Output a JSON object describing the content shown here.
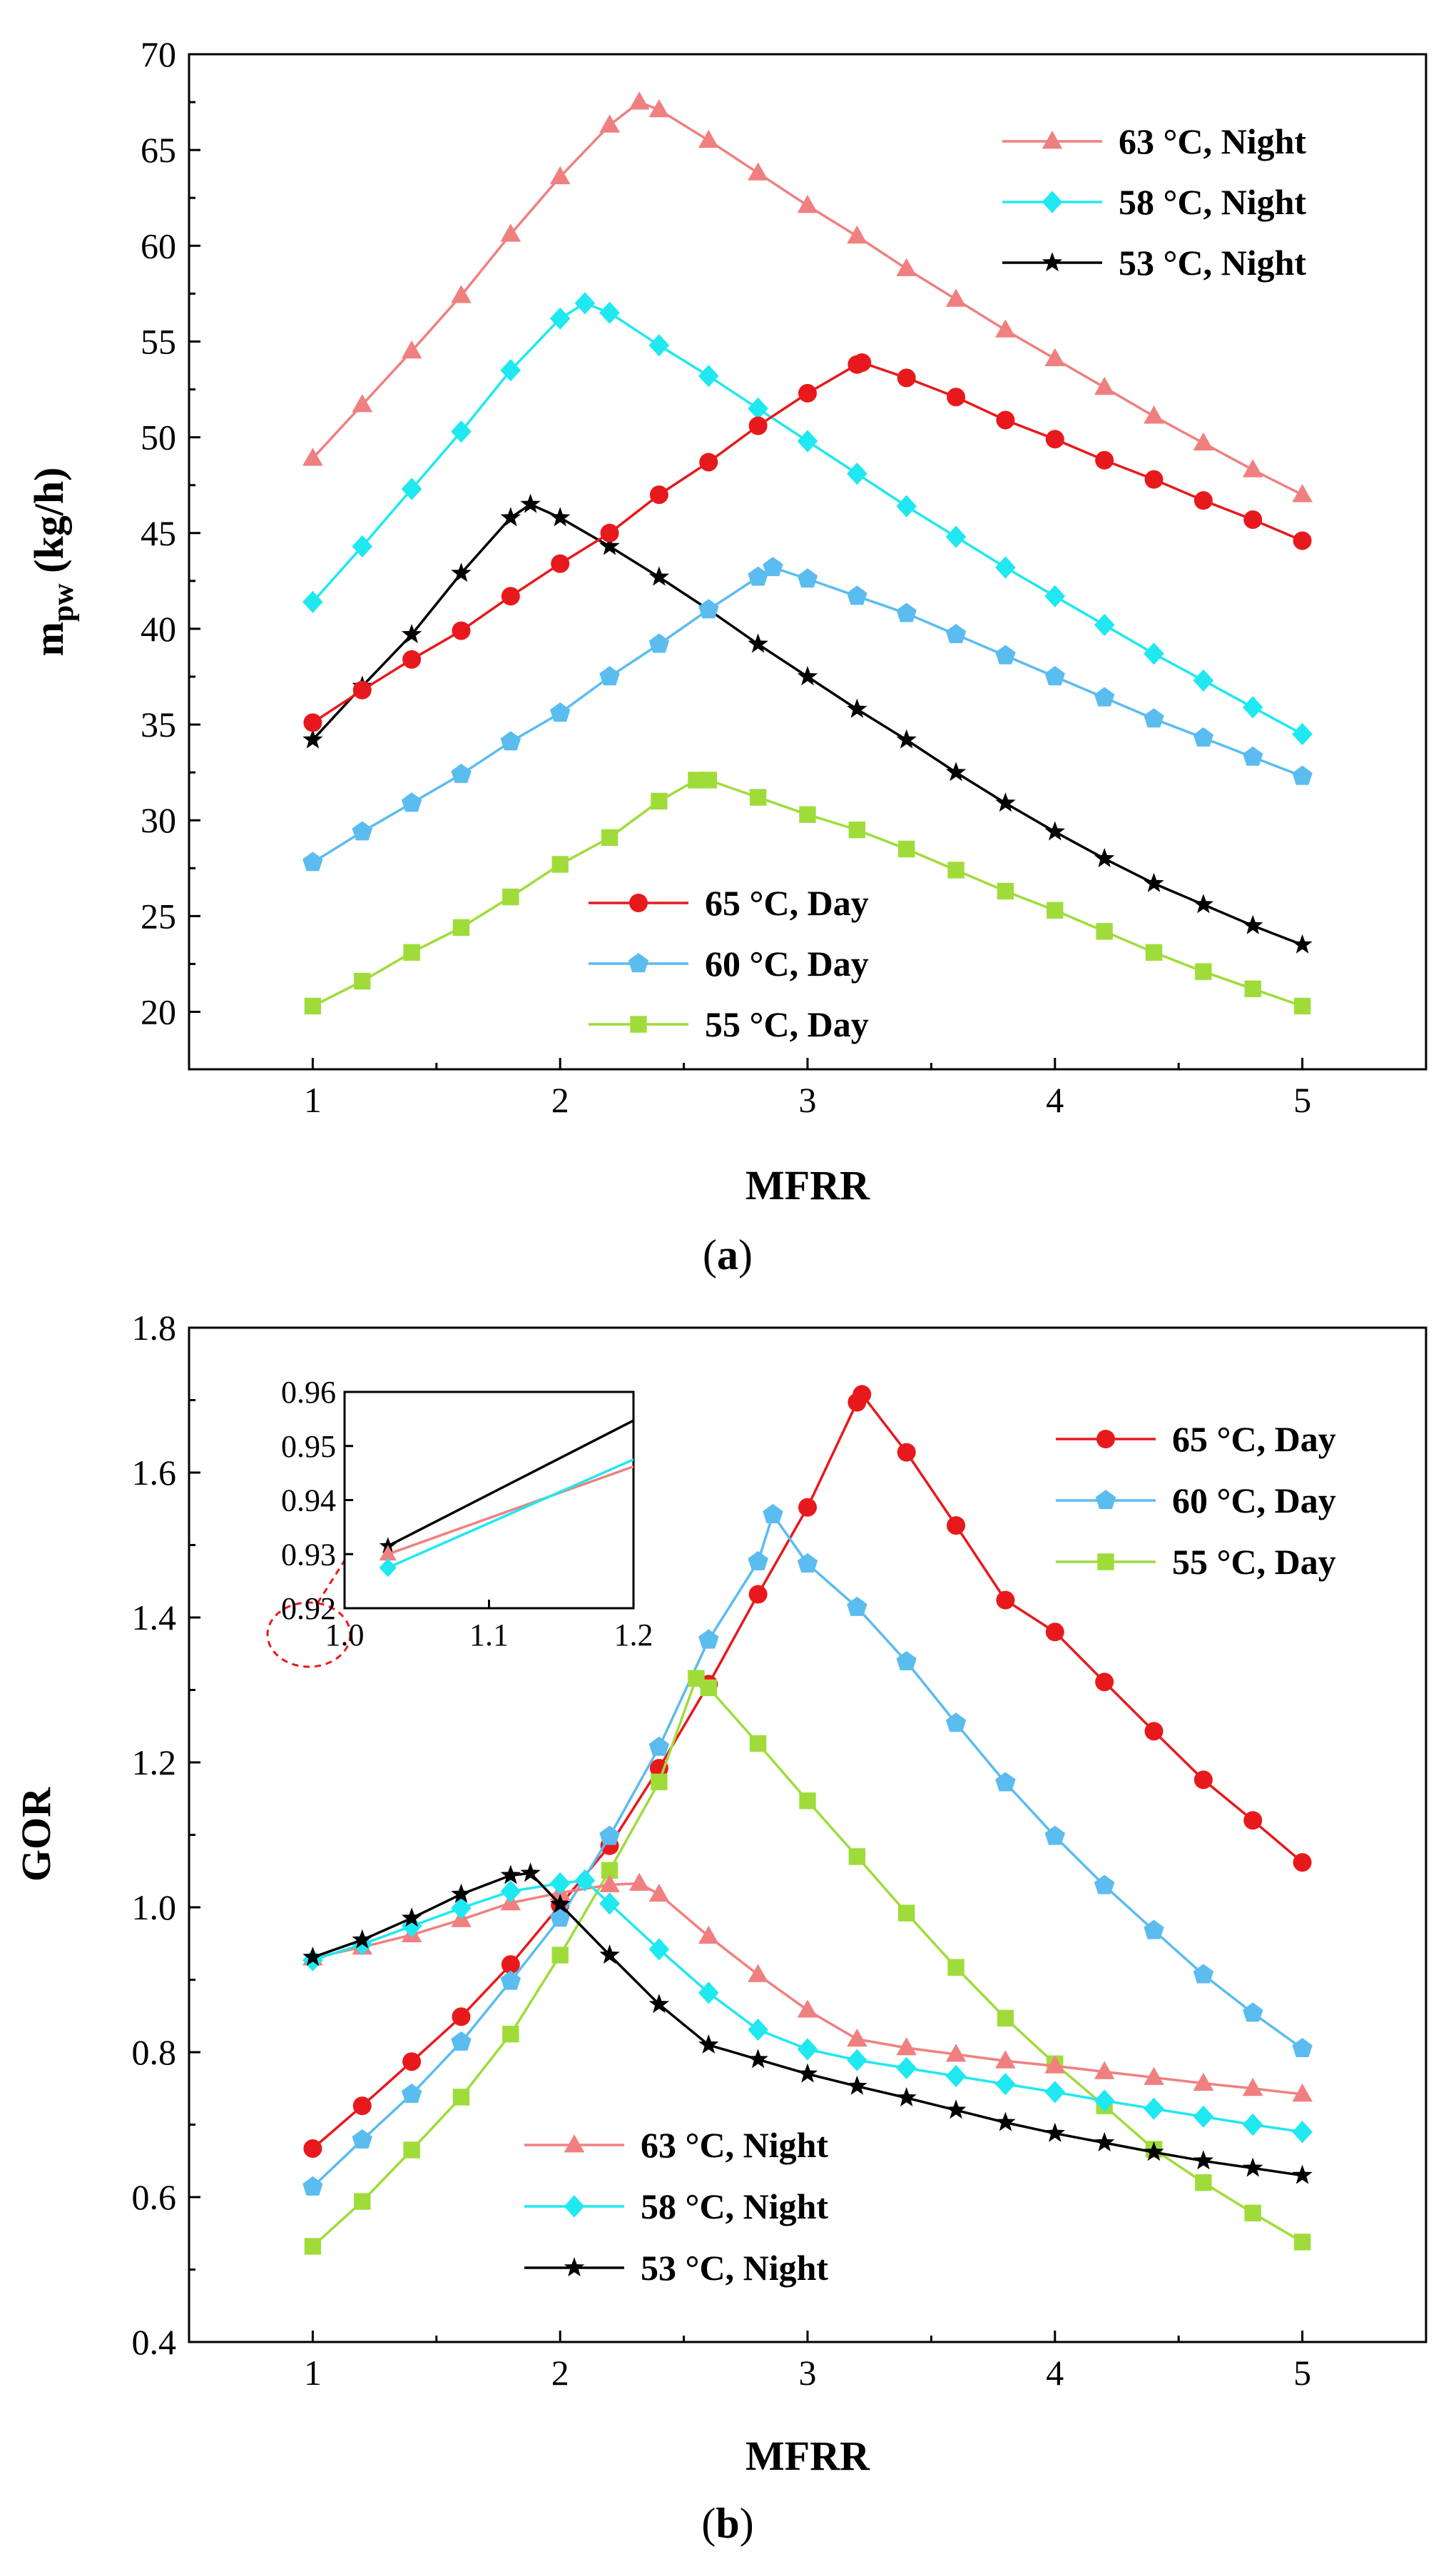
{
  "colors": {
    "red": "#e8191c",
    "blue": "#5bbcf0",
    "green": "#9fdc3a",
    "salmon": "#f08080",
    "cyan": "#1fe8f0",
    "black": "#000000"
  },
  "chart_data": [
    {
      "type": "line",
      "panel": "a",
      "caption": {
        "open": "(",
        "letter": "a",
        "close": ")"
      },
      "xlabel": "MFRR",
      "ylabel_main": "m",
      "ylabel_sub": "pw",
      "ylabel_unit": " (kg/h)",
      "xlim": [
        0.5,
        5.5
      ],
      "ylim": [
        17,
        70
      ],
      "xticks": [
        1,
        2,
        3,
        4,
        5
      ],
      "xtick_labels": [
        "1",
        "2",
        "3",
        "4",
        "5"
      ],
      "yticks": [
        20,
        25,
        30,
        35,
        40,
        45,
        50,
        55,
        60,
        65,
        70
      ],
      "ytick_labels": [
        "20",
        "25",
        "30",
        "35",
        "40",
        "45",
        "50",
        "55",
        "60",
        "65",
        "70"
      ],
      "legends": [
        {
          "position": "top-right",
          "entries": [
            "63 °C, Night",
            "58 °C, Night",
            "53 °C, Night"
          ]
        },
        {
          "position": "bottom-center",
          "entries": [
            "65 °C, Day",
            "60 °C, Day",
            "55 °C, Day"
          ]
        }
      ],
      "series": [
        {
          "name": "63 °C, Night",
          "color": "#f08080",
          "marker": "triangle",
          "x": [
            1,
            1.2,
            1.4,
            1.6,
            1.8,
            2.0,
            2.2,
            2.32,
            2.4,
            2.6,
            2.8,
            3.0,
            3.2,
            3.4,
            3.6,
            3.8,
            4.0,
            4.2,
            4.4,
            4.6,
            4.8,
            5.0
          ],
          "y": [
            48.9,
            51.7,
            54.5,
            57.4,
            60.6,
            63.6,
            66.3,
            67.5,
            67.1,
            65.5,
            63.8,
            62.1,
            60.5,
            58.8,
            57.2,
            55.6,
            54.1,
            52.6,
            51.1,
            49.7,
            48.3,
            47.0
          ]
        },
        {
          "name": "58 °C, Night",
          "color": "#1fe8f0",
          "marker": "diamond",
          "x": [
            1,
            1.2,
            1.4,
            1.6,
            1.8,
            2.0,
            2.1,
            2.2,
            2.4,
            2.6,
            2.8,
            3.0,
            3.2,
            3.4,
            3.6,
            3.8,
            4.0,
            4.2,
            4.4,
            4.6,
            4.8,
            5.0
          ],
          "y": [
            41.4,
            44.3,
            47.3,
            50.3,
            53.5,
            56.2,
            57.0,
            56.5,
            54.8,
            53.2,
            51.5,
            49.8,
            48.1,
            46.4,
            44.8,
            43.2,
            41.7,
            40.2,
            38.7,
            37.3,
            35.9,
            34.5
          ]
        },
        {
          "name": "53 °C, Night",
          "color": "#000000",
          "marker": "star",
          "x": [
            1,
            1.2,
            1.4,
            1.6,
            1.8,
            1.88,
            2.0,
            2.2,
            2.4,
            2.6,
            2.8,
            3.0,
            3.2,
            3.4,
            3.6,
            3.8,
            4.0,
            4.2,
            4.4,
            4.6,
            4.8,
            5.0
          ],
          "y": [
            34.2,
            37.0,
            39.7,
            42.9,
            45.8,
            46.5,
            45.8,
            44.3,
            42.7,
            41.0,
            39.2,
            37.5,
            35.8,
            34.2,
            32.5,
            30.9,
            29.4,
            28.0,
            26.7,
            25.6,
            24.5,
            23.5
          ]
        },
        {
          "name": "65 °C, Day",
          "color": "#e8191c",
          "marker": "circle",
          "x": [
            1,
            1.2,
            1.4,
            1.6,
            1.8,
            2.0,
            2.2,
            2.4,
            2.6,
            2.8,
            3.0,
            3.2,
            3.22,
            3.4,
            3.6,
            3.8,
            4.0,
            4.2,
            4.4,
            4.6,
            4.8,
            5.0
          ],
          "y": [
            35.1,
            36.8,
            38.4,
            39.9,
            41.7,
            43.4,
            45.0,
            47.0,
            48.7,
            50.6,
            52.3,
            53.8,
            53.9,
            53.1,
            52.1,
            50.9,
            49.9,
            48.8,
            47.8,
            46.7,
            45.7,
            44.6
          ]
        },
        {
          "name": "60 °C, Day",
          "color": "#5bbcf0",
          "marker": "pentagon",
          "x": [
            1,
            1.2,
            1.4,
            1.6,
            1.8,
            2.0,
            2.2,
            2.4,
            2.6,
            2.8,
            2.86,
            3.0,
            3.2,
            3.4,
            3.6,
            3.8,
            4.0,
            4.2,
            4.4,
            4.6,
            4.8,
            5.0
          ],
          "y": [
            27.8,
            29.4,
            30.9,
            32.4,
            34.1,
            35.6,
            37.5,
            39.2,
            41.0,
            42.7,
            43.2,
            42.6,
            41.7,
            40.8,
            39.7,
            38.6,
            37.5,
            36.4,
            35.3,
            34.3,
            33.3,
            32.3
          ]
        },
        {
          "name": "55 °C, Day",
          "color": "#9fdc3a",
          "marker": "square",
          "x": [
            1,
            1.2,
            1.4,
            1.6,
            1.8,
            2.0,
            2.2,
            2.4,
            2.55,
            2.6,
            2.8,
            3.0,
            3.2,
            3.4,
            3.6,
            3.8,
            4.0,
            4.2,
            4.4,
            4.6,
            4.8,
            5.0
          ],
          "y": [
            20.3,
            21.6,
            23.1,
            24.4,
            26.0,
            27.7,
            29.1,
            31.0,
            32.1,
            32.1,
            31.2,
            30.3,
            29.5,
            28.5,
            27.4,
            26.3,
            25.3,
            24.2,
            23.1,
            22.1,
            21.2,
            20.3
          ]
        }
      ]
    },
    {
      "type": "line",
      "panel": "b",
      "caption": {
        "open": "(",
        "letter": "b",
        "close": ")"
      },
      "xlabel": "MFRR",
      "ylabel": "GOR",
      "xlim": [
        0.5,
        5.5
      ],
      "ylim": [
        0.4,
        1.8
      ],
      "xticks": [
        1,
        2,
        3,
        4,
        5
      ],
      "xtick_labels": [
        "1",
        "2",
        "3",
        "4",
        "5"
      ],
      "yticks": [
        0.4,
        0.6,
        0.8,
        1.0,
        1.2,
        1.4,
        1.6,
        1.8
      ],
      "ytick_labels": [
        "0.4",
        "0.6",
        "0.8",
        "1.0",
        "1.2",
        "1.4",
        "1.6",
        "1.8"
      ],
      "legends": [
        {
          "position": "top-right",
          "entries": [
            "65 °C, Day",
            "60 °C, Day",
            "55 °C, Day"
          ]
        },
        {
          "position": "bottom-center",
          "entries": [
            "63 °C, Night",
            "58 °C, Night",
            "53 °C, Night"
          ]
        }
      ],
      "series": [
        {
          "name": "65 °C, Day",
          "color": "#e8191c",
          "marker": "circle",
          "x": [
            1,
            1.2,
            1.4,
            1.6,
            1.8,
            2.0,
            2.2,
            2.4,
            2.6,
            2.8,
            3.0,
            3.2,
            3.22,
            3.4,
            3.6,
            3.8,
            4.0,
            4.2,
            4.4,
            4.6,
            4.8,
            5.0
          ],
          "y": [
            0.667,
            0.726,
            0.787,
            0.849,
            0.921,
            1.003,
            1.085,
            1.192,
            1.308,
            1.432,
            1.552,
            1.697,
            1.708,
            1.628,
            1.527,
            1.424,
            1.38,
            1.311,
            1.243,
            1.176,
            1.12,
            1.062
          ]
        },
        {
          "name": "60 °C, Day",
          "color": "#5bbcf0",
          "marker": "pentagon",
          "x": [
            1,
            1.2,
            1.4,
            1.6,
            1.8,
            2.0,
            2.2,
            2.4,
            2.6,
            2.8,
            2.86,
            3.0,
            3.2,
            3.4,
            3.6,
            3.8,
            4.0,
            4.2,
            4.4,
            4.6,
            4.8,
            5.0
          ],
          "y": [
            0.614,
            0.679,
            0.742,
            0.814,
            0.898,
            0.985,
            1.098,
            1.221,
            1.369,
            1.477,
            1.542,
            1.474,
            1.414,
            1.339,
            1.254,
            1.172,
            1.098,
            1.03,
            0.968,
            0.907,
            0.854,
            0.805
          ]
        },
        {
          "name": "55 °C, Day",
          "color": "#9fdc3a",
          "marker": "square",
          "x": [
            1,
            1.2,
            1.4,
            1.6,
            1.8,
            2.0,
            2.2,
            2.4,
            2.55,
            2.6,
            2.8,
            3.0,
            3.2,
            3.4,
            3.6,
            3.8,
            4.0,
            4.2,
            4.4,
            4.6,
            4.8,
            5.0
          ],
          "y": [
            0.532,
            0.594,
            0.665,
            0.738,
            0.825,
            0.934,
            1.051,
            1.173,
            1.316,
            1.303,
            1.226,
            1.147,
            1.07,
            0.992,
            0.917,
            0.847,
            0.784,
            0.726,
            0.666,
            0.62,
            0.578,
            0.538
          ]
        },
        {
          "name": "63 °C, Night",
          "color": "#f08080",
          "marker": "triangle",
          "x": [
            1,
            1.2,
            1.4,
            1.6,
            1.8,
            2.0,
            2.2,
            2.32,
            2.4,
            2.6,
            2.8,
            3.0,
            3.2,
            3.4,
            3.6,
            3.8,
            4.0,
            4.2,
            4.4,
            4.6,
            4.8,
            5.0
          ],
          "y": [
            0.93,
            0.945,
            0.962,
            0.983,
            1.006,
            1.02,
            1.031,
            1.033,
            1.018,
            0.96,
            0.907,
            0.858,
            0.818,
            0.806,
            0.797,
            0.788,
            0.781,
            0.773,
            0.765,
            0.757,
            0.75,
            0.742
          ]
        },
        {
          "name": "58 °C, Night",
          "color": "#1fe8f0",
          "marker": "diamond",
          "x": [
            1,
            1.2,
            1.4,
            1.6,
            1.8,
            2.0,
            2.1,
            2.2,
            2.4,
            2.6,
            2.8,
            3.0,
            3.2,
            3.4,
            3.6,
            3.8,
            4.0,
            4.2,
            4.4,
            4.6,
            4.8,
            5.0
          ],
          "y": [
            0.927,
            0.949,
            0.974,
            0.999,
            1.022,
            1.033,
            1.037,
            1.005,
            0.942,
            0.882,
            0.831,
            0.804,
            0.789,
            0.778,
            0.767,
            0.756,
            0.745,
            0.733,
            0.722,
            0.711,
            0.7,
            0.69
          ]
        },
        {
          "name": "53 °C, Night",
          "color": "#000000",
          "marker": "star",
          "x": [
            1,
            1.2,
            1.4,
            1.6,
            1.8,
            1.88,
            2.0,
            2.2,
            2.4,
            2.6,
            2.8,
            3.0,
            3.2,
            3.4,
            3.6,
            3.8,
            4.0,
            4.2,
            4.4,
            4.6,
            4.8,
            5.0
          ],
          "y": [
            0.931,
            0.955,
            0.985,
            1.018,
            1.044,
            1.047,
            1.004,
            0.934,
            0.866,
            0.81,
            0.79,
            0.77,
            0.753,
            0.737,
            0.72,
            0.703,
            0.688,
            0.675,
            0.662,
            0.65,
            0.64,
            0.63
          ]
        }
      ],
      "inset": {
        "xlim": [
          1.0,
          1.2
        ],
        "ylim": [
          0.92,
          0.96
        ],
        "xticks": [
          1.0,
          1.1,
          1.2
        ],
        "xtick_labels": [
          "1.0",
          "1.1",
          "1.2"
        ],
        "yticks": [
          0.92,
          0.93,
          0.94,
          0.95,
          0.96
        ],
        "ytick_labels": [
          "0.92",
          "0.93",
          "0.94",
          "0.95",
          "0.96"
        ],
        "series": [
          {
            "name": "53 °C, Night",
            "color": "#000000",
            "marker": "star",
            "x": [
              1.03,
              1.2
            ],
            "y": [
              0.9315,
              0.9547
            ]
          },
          {
            "name": "63 °C, Night",
            "color": "#f08080",
            "marker": "triangle",
            "x": [
              1.03,
              1.2
            ],
            "y": [
              0.93,
              0.9462
            ]
          },
          {
            "name": "58 °C, Night",
            "color": "#1fe8f0",
            "marker": "diamond",
            "x": [
              1.03,
              1.2
            ],
            "y": [
              0.9275,
              0.9475
            ]
          }
        ]
      }
    }
  ]
}
